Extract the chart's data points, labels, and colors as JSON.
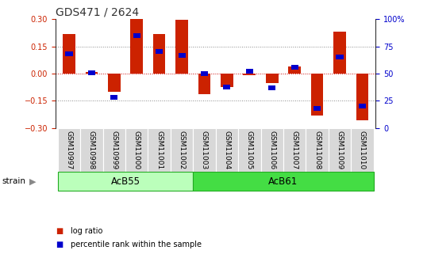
{
  "title": "GDS471 / 2624",
  "samples": [
    "GSM10997",
    "GSM10998",
    "GSM10999",
    "GSM11000",
    "GSM11001",
    "GSM11002",
    "GSM11003",
    "GSM11004",
    "GSM11005",
    "GSM11006",
    "GSM11007",
    "GSM11008",
    "GSM11009",
    "GSM11010"
  ],
  "log_ratio": [
    0.22,
    0.01,
    -0.1,
    0.3,
    0.22,
    0.295,
    -0.115,
    -0.075,
    -0.01,
    -0.05,
    0.04,
    -0.23,
    0.23,
    -0.255
  ],
  "percentile": [
    68,
    51,
    28,
    85,
    70,
    67,
    50,
    38,
    52,
    37,
    56,
    18,
    65,
    20
  ],
  "groups": [
    {
      "label": "AcB55",
      "start": 0,
      "end": 5,
      "color": "#bbffbb"
    },
    {
      "label": "AcB61",
      "start": 6,
      "end": 13,
      "color": "#44dd44"
    }
  ],
  "strain_label": "strain",
  "ylim": [
    -0.3,
    0.3
  ],
  "yticks_left": [
    -0.3,
    -0.15,
    0.0,
    0.15,
    0.3
  ],
  "yticks_right": [
    0,
    25,
    50,
    75,
    100
  ],
  "bar_color": "#cc2200",
  "percentile_color": "#0000cc",
  "bar_width": 0.55
}
